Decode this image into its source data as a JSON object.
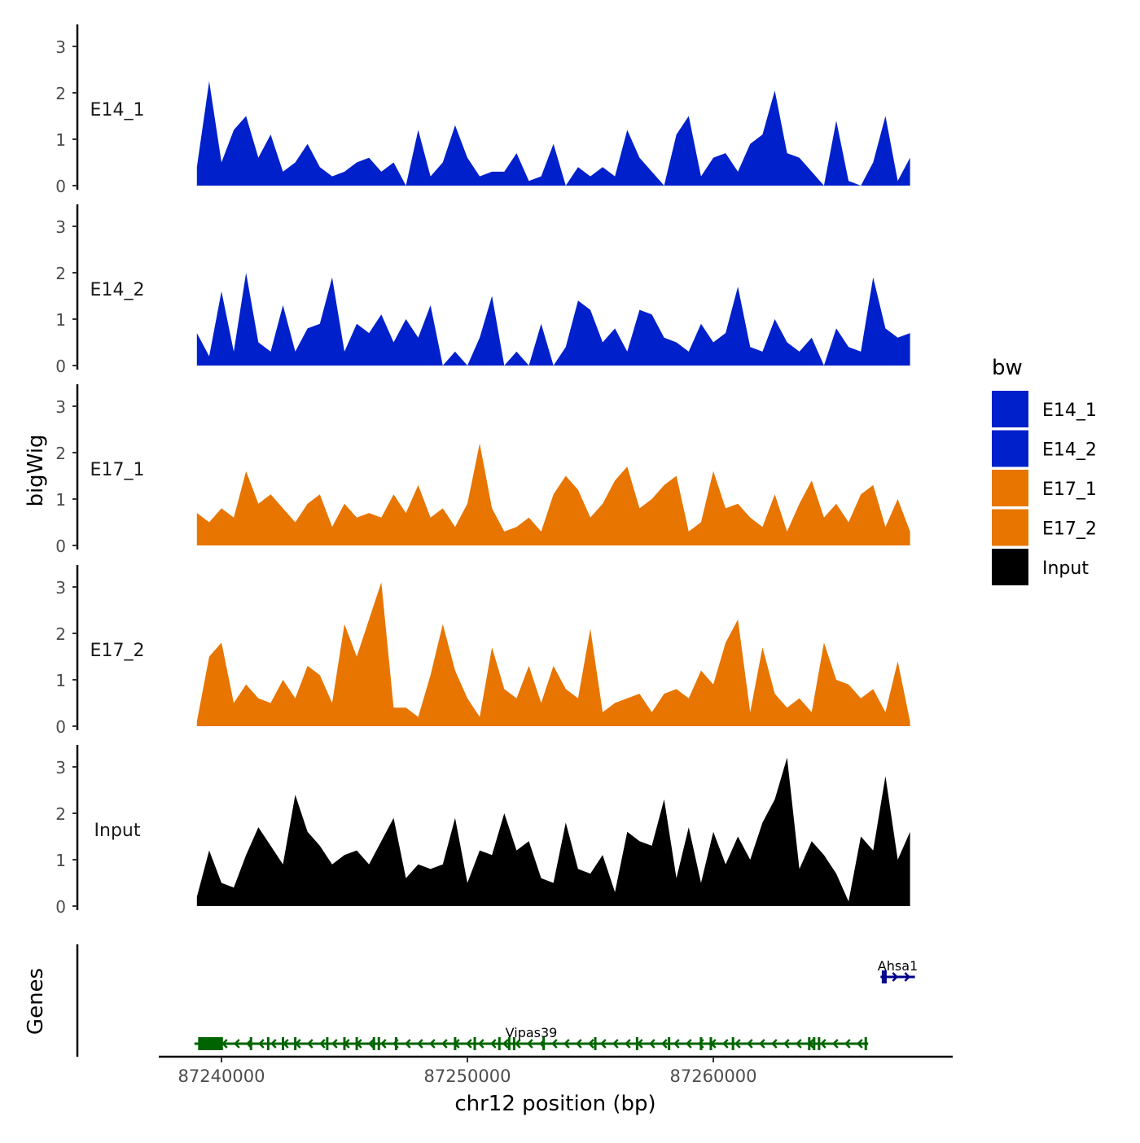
{
  "chart_data": {
    "type": "area",
    "title": "",
    "xlabel": "chr12 position (bp)",
    "ylabel": "bigWig",
    "genes_label": "Genes",
    "x_ticks": [
      87240000,
      87250000,
      87260000
    ],
    "x_tick_labels": [
      "87240000",
      "87250000",
      "87260000"
    ],
    "xlim": [
      87239000,
      87268300
    ],
    "ylim": [
      0,
      3.4
    ],
    "y_ticks": [
      0,
      1,
      2,
      3
    ],
    "y_tick_labels": [
      "0",
      "1",
      "2",
      "3"
    ],
    "x_start": 87239000,
    "x_step": 500,
    "legend": {
      "title": "bw",
      "position": "right",
      "entries": [
        {
          "label": "E14_1",
          "color": "#0020CC"
        },
        {
          "label": "E14_2",
          "color": "#0020CC"
        },
        {
          "label": "E17_1",
          "color": "#E87500"
        },
        {
          "label": "E17_2",
          "color": "#E87500"
        },
        {
          "label": "Input",
          "color": "#000000"
        }
      ]
    },
    "series": [
      {
        "name": "E14_1",
        "color": "#0020CC",
        "values": [
          0.4,
          2.25,
          0.5,
          1.2,
          1.5,
          0.6,
          1.1,
          0.3,
          0.5,
          0.9,
          0.4,
          0.2,
          0.3,
          0.5,
          0.6,
          0.3,
          0.5,
          0.0,
          1.2,
          0.2,
          0.5,
          1.3,
          0.6,
          0.2,
          0.3,
          0.3,
          0.7,
          0.1,
          0.2,
          0.9,
          0.0,
          0.4,
          0.2,
          0.4,
          0.2,
          1.2,
          0.6,
          0.3,
          0.0,
          1.1,
          1.5,
          0.2,
          0.6,
          0.7,
          0.3,
          0.9,
          1.1,
          2.05,
          0.7,
          0.6,
          0.3,
          0.0,
          1.4,
          0.1,
          0.0,
          0.5,
          1.5,
          0.1,
          0.6
        ]
      },
      {
        "name": "E14_2",
        "color": "#0020CC",
        "values": [
          0.7,
          0.2,
          1.6,
          0.3,
          2.0,
          0.5,
          0.3,
          1.3,
          0.3,
          0.8,
          0.9,
          1.9,
          0.3,
          0.9,
          0.7,
          1.1,
          0.5,
          1.0,
          0.6,
          1.3,
          0.0,
          0.3,
          0.0,
          0.6,
          1.5,
          0.0,
          0.3,
          0.0,
          0.9,
          0.0,
          0.4,
          1.4,
          1.2,
          0.5,
          0.8,
          0.3,
          1.2,
          1.1,
          0.6,
          0.5,
          0.3,
          0.9,
          0.5,
          0.7,
          1.7,
          0.4,
          0.3,
          1.0,
          0.5,
          0.3,
          0.6,
          0.0,
          0.8,
          0.4,
          0.3,
          1.9,
          0.8,
          0.6,
          0.7
        ]
      },
      {
        "name": "E17_1",
        "color": "#E87500",
        "values": [
          0.7,
          0.5,
          0.8,
          0.6,
          1.6,
          0.9,
          1.1,
          0.8,
          0.5,
          0.9,
          1.1,
          0.4,
          0.9,
          0.6,
          0.7,
          0.6,
          1.1,
          0.7,
          1.3,
          0.6,
          0.8,
          0.4,
          0.9,
          2.2,
          0.8,
          0.3,
          0.4,
          0.6,
          0.3,
          1.1,
          1.5,
          1.2,
          0.6,
          0.9,
          1.4,
          1.7,
          0.8,
          1.0,
          1.3,
          1.5,
          0.3,
          0.5,
          1.6,
          0.8,
          0.9,
          0.6,
          0.4,
          1.1,
          0.3,
          0.9,
          1.4,
          0.6,
          0.9,
          0.5,
          1.1,
          1.3,
          0.4,
          1.0,
          0.3
        ]
      },
      {
        "name": "E17_2",
        "color": "#E87500",
        "values": [
          0.1,
          1.5,
          1.8,
          0.5,
          0.9,
          0.6,
          0.5,
          1.0,
          0.6,
          1.3,
          1.1,
          0.5,
          2.2,
          1.5,
          2.3,
          3.1,
          0.4,
          0.4,
          0.2,
          1.1,
          2.2,
          1.2,
          0.6,
          0.2,
          1.7,
          0.8,
          0.6,
          1.3,
          0.5,
          1.3,
          0.8,
          0.6,
          2.1,
          0.3,
          0.5,
          0.6,
          0.7,
          0.3,
          0.7,
          0.8,
          0.6,
          1.2,
          0.9,
          1.8,
          2.3,
          0.3,
          1.7,
          0.7,
          0.4,
          0.6,
          0.3,
          1.8,
          1.0,
          0.9,
          0.6,
          0.8,
          0.3,
          1.4,
          0.1
        ]
      },
      {
        "name": "Input",
        "color": "#000000",
        "values": [
          0.2,
          1.2,
          0.5,
          0.4,
          1.1,
          1.7,
          1.3,
          0.9,
          2.4,
          1.6,
          1.3,
          0.9,
          1.1,
          1.2,
          0.9,
          1.4,
          1.9,
          0.6,
          0.9,
          0.8,
          0.9,
          1.9,
          0.5,
          1.2,
          1.1,
          2.0,
          1.2,
          1.4,
          0.6,
          0.5,
          1.8,
          0.8,
          0.7,
          1.1,
          0.3,
          1.6,
          1.4,
          1.3,
          2.3,
          0.6,
          1.7,
          0.5,
          1.6,
          0.9,
          1.5,
          1.0,
          1.8,
          2.3,
          3.2,
          0.8,
          1.4,
          1.1,
          0.7,
          0.1,
          1.5,
          1.2,
          2.8,
          1.0,
          1.6
        ]
      }
    ],
    "genes": [
      {
        "name": "Vipas39",
        "strand": "-",
        "color": "#006400",
        "start": 87238900,
        "end": 87266300,
        "exons": [
          87239100,
          87239600,
          87241200,
          87241900,
          87242500,
          87243000,
          87244300,
          87245000,
          87245500,
          87246200,
          87246400,
          87247100,
          87249500,
          87250300,
          87251300,
          87251700,
          87251900,
          87253100,
          87255200,
          87256900,
          87258200,
          87259500,
          87259900,
          87260800,
          87263900,
          87264100,
          87264300,
          87266200
        ]
      },
      {
        "name": "Ahsa1",
        "strand": "+",
        "color": "#00008B",
        "start": 87266800,
        "end": 87268200,
        "exons": [
          87266900,
          87267000
        ]
      }
    ]
  }
}
